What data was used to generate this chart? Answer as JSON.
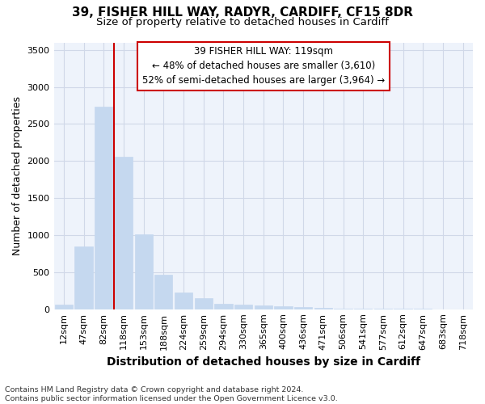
{
  "title_line1": "39, FISHER HILL WAY, RADYR, CARDIFF, CF15 8DR",
  "title_line2": "Size of property relative to detached houses in Cardiff",
  "xlabel": "Distribution of detached houses by size in Cardiff",
  "ylabel": "Number of detached properties",
  "footnote_line1": "Contains HM Land Registry data © Crown copyright and database right 2024.",
  "footnote_line2": "Contains public sector information licensed under the Open Government Licence v3.0.",
  "categories": [
    "12sqm",
    "47sqm",
    "82sqm",
    "118sqm",
    "153sqm",
    "188sqm",
    "224sqm",
    "259sqm",
    "294sqm",
    "330sqm",
    "365sqm",
    "400sqm",
    "436sqm",
    "471sqm",
    "506sqm",
    "541sqm",
    "577sqm",
    "612sqm",
    "647sqm",
    "683sqm",
    "718sqm"
  ],
  "values": [
    60,
    850,
    2730,
    2060,
    1010,
    460,
    230,
    150,
    75,
    60,
    50,
    35,
    25,
    15,
    10,
    5,
    5,
    3,
    2,
    1,
    1
  ],
  "bar_color": "#c5d8ef",
  "bar_edge_color": "#c5d8ef",
  "grid_color": "#d0d8e8",
  "bg_color": "#ffffff",
  "plot_bg_color": "#eef3fb",
  "vline_color": "#cc0000",
  "annotation_text": "39 FISHER HILL WAY: 119sqm\n← 48% of detached houses are smaller (3,610)\n52% of semi-detached houses are larger (3,964) →",
  "annotation_box_color": "#cc0000",
  "ylim": [
    0,
    3600
  ],
  "yticks": [
    0,
    500,
    1000,
    1500,
    2000,
    2500,
    3000,
    3500
  ],
  "title_fontsize": 11,
  "subtitle_fontsize": 9.5,
  "axis_label_fontsize": 10,
  "tick_fontsize": 8,
  "footnote_fontsize": 6.8
}
